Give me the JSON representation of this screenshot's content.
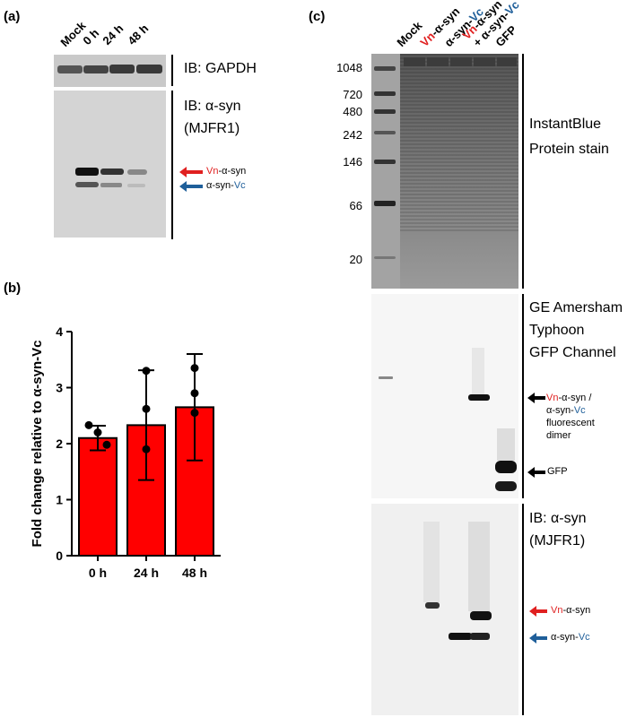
{
  "panel_a": {
    "label": "(a)",
    "lanes": [
      "Mock",
      "0 h",
      "24 h",
      "48 h"
    ],
    "ib_gapdh": "IB: GAPDH",
    "ib_asyn_1": "IB: α-syn",
    "ib_asyn_2": "(MJFR1)",
    "arrow_vn": {
      "prefix": "Vn",
      "suffix": "-α-syn"
    },
    "arrow_vc": {
      "prefix": "α-syn-",
      "suffix": "Vc"
    },
    "colors": {
      "red": "#e02020",
      "blue": "#1f5f9a"
    }
  },
  "panel_b": {
    "label": "(b)"
  },
  "chart_data": {
    "type": "bar",
    "categories": [
      "0 h",
      "24 h",
      "48 h"
    ],
    "values": [
      2.1,
      2.33,
      2.65
    ],
    "errors": [
      0.22,
      0.98,
      0.95
    ],
    "points": [
      [
        2.33,
        2.2,
        1.98
      ],
      [
        3.3,
        2.62,
        1.9
      ],
      [
        3.35,
        2.9,
        2.55
      ]
    ],
    "title": "",
    "xlabel": "",
    "ylabel": "Fold change relative to α-syn-Vc",
    "ylim": [
      0,
      4
    ],
    "yticks": [
      "0",
      "1",
      "2",
      "3",
      "4"
    ],
    "bar_color": "#ff0000"
  },
  "panel_c": {
    "label": "(c)",
    "lanes": [
      {
        "text": "Mock",
        "parts": [
          [
            "Mock",
            ""
          ]
        ]
      },
      {
        "text": "Vn-α-syn",
        "parts": [
          [
            "Vn",
            "red"
          ],
          [
            "-α-syn",
            ""
          ]
        ]
      },
      {
        "text": "α-syn-Vc",
        "parts": [
          [
            "α-syn-",
            ""
          ],
          [
            "Vc",
            "blue"
          ]
        ]
      },
      {
        "text": "Vn-α-syn + α-syn-Vc",
        "parts": [
          [
            "Vn",
            "red"
          ],
          [
            "-α-syn",
            ""
          ]
        ],
        "line2": [
          [
            "+ α-syn-",
            ""
          ],
          [
            "Vc",
            "blue"
          ]
        ]
      },
      {
        "text": "GFP",
        "parts": [
          [
            "GFP",
            ""
          ]
        ]
      }
    ],
    "mw_markers": [
      "1048",
      "720",
      "480",
      "242",
      "146",
      "66",
      "20"
    ],
    "stain_1": "InstantBlue",
    "stain_2": "Protein stain",
    "typhoon_1": "GE Amersham",
    "typhoon_2": "Typhoon",
    "typhoon_3": "GFP Channel",
    "dimer_vn": "Vn",
    "dimer_asyn": "-α-syn /",
    "dimer_asyn2": "α-syn-",
    "dimer_vc": "Vc",
    "dimer_fluor": "fluorescent",
    "dimer_word": "dimer",
    "gfp_label": "GFP",
    "ib_asyn_1": "IB: α-syn",
    "ib_asyn_2": "(MJFR1)",
    "arrow_vn": {
      "prefix": "Vn",
      "suffix": "-α-syn"
    },
    "arrow_vc": {
      "prefix": "α-syn-",
      "suffix": "Vc"
    }
  }
}
